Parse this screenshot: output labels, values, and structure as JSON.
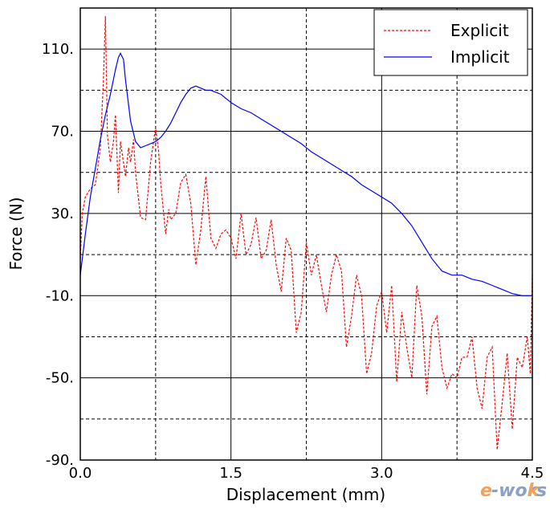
{
  "chart_data": {
    "type": "line",
    "xlabel": "Displacement (mm)",
    "ylabel": "Force (N)",
    "xlim": [
      0,
      4.5
    ],
    "ylim": [
      -90,
      130
    ],
    "x_ticks": [
      0.0,
      1.5,
      3.0,
      4.5
    ],
    "x_tick_labels": [
      "0.0",
      "1.5",
      "3.0",
      "4.5"
    ],
    "y_ticks": [
      -90,
      -50,
      -10,
      30,
      70,
      110
    ],
    "y_tick_labels": [
      "-90.",
      "-50.",
      "-10.",
      "30.",
      "70.",
      "110."
    ],
    "grid": true,
    "legend_position": "top-right",
    "series": [
      {
        "name": "Explicit",
        "color": "#ff0000",
        "style": "dashed",
        "x": [
          0.0,
          0.02,
          0.05,
          0.1,
          0.15,
          0.2,
          0.23,
          0.25,
          0.27,
          0.3,
          0.33,
          0.35,
          0.38,
          0.4,
          0.45,
          0.48,
          0.5,
          0.53,
          0.55,
          0.6,
          0.65,
          0.7,
          0.75,
          0.78,
          0.8,
          0.85,
          0.88,
          0.9,
          0.95,
          1.0,
          1.05,
          1.1,
          1.15,
          1.2,
          1.25,
          1.3,
          1.35,
          1.4,
          1.45,
          1.5,
          1.55,
          1.6,
          1.65,
          1.7,
          1.75,
          1.8,
          1.85,
          1.9,
          1.95,
          2.0,
          2.05,
          2.1,
          2.15,
          2.2,
          2.25,
          2.3,
          2.35,
          2.4,
          2.45,
          2.5,
          2.55,
          2.6,
          2.65,
          2.7,
          2.75,
          2.8,
          2.85,
          2.9,
          2.95,
          3.0,
          3.05,
          3.1,
          3.15,
          3.2,
          3.25,
          3.3,
          3.35,
          3.4,
          3.45,
          3.5,
          3.55,
          3.6,
          3.65,
          3.7,
          3.75,
          3.8,
          3.85,
          3.9,
          3.95,
          4.0,
          4.05,
          4.1,
          4.15,
          4.2,
          4.25,
          4.3,
          4.35,
          4.4,
          4.45,
          4.48,
          4.5
        ],
        "y": [
          8,
          30,
          38,
          42,
          44,
          62,
          95,
          126,
          68,
          55,
          65,
          78,
          40,
          65,
          48,
          62,
          55,
          66,
          50,
          28,
          27,
          55,
          72,
          60,
          45,
          20,
          32,
          27,
          30,
          45,
          49,
          35,
          5,
          22,
          48,
          18,
          13,
          20,
          22,
          18,
          8,
          30,
          10,
          15,
          28,
          8,
          12,
          27,
          5,
          -8,
          18,
          12,
          -28,
          -18,
          16,
          0,
          10,
          -5,
          -18,
          0,
          10,
          2,
          -35,
          -20,
          0,
          -10,
          -48,
          -38,
          -15,
          -8,
          -28,
          -5,
          -52,
          -18,
          -35,
          -50,
          -5,
          -20,
          -58,
          -25,
          -20,
          -45,
          -55,
          -48,
          -50,
          -40,
          -40,
          -30,
          -55,
          -65,
          -40,
          -35,
          -85,
          -62,
          -38,
          -75,
          -40,
          -45,
          -30,
          -48,
          0
        ]
      },
      {
        "name": "Implicit",
        "color": "#0000ff",
        "style": "solid",
        "x": [
          0.0,
          0.05,
          0.1,
          0.15,
          0.2,
          0.25,
          0.3,
          0.35,
          0.38,
          0.4,
          0.43,
          0.45,
          0.5,
          0.55,
          0.6,
          0.65,
          0.7,
          0.75,
          0.8,
          0.85,
          0.9,
          0.95,
          1.0,
          1.05,
          1.1,
          1.15,
          1.2,
          1.25,
          1.3,
          1.4,
          1.5,
          1.6,
          1.7,
          1.8,
          1.9,
          2.0,
          2.1,
          2.2,
          2.3,
          2.4,
          2.5,
          2.6,
          2.7,
          2.8,
          2.9,
          3.0,
          3.1,
          3.2,
          3.3,
          3.4,
          3.5,
          3.6,
          3.7,
          3.8,
          3.9,
          4.0,
          4.1,
          4.2,
          4.3,
          4.4,
          4.5
        ],
        "y": [
          0,
          20,
          38,
          52,
          66,
          78,
          88,
          100,
          106,
          108,
          105,
          95,
          75,
          65,
          62,
          63,
          64,
          65,
          67,
          70,
          74,
          79,
          84,
          88,
          91,
          92,
          91,
          90,
          90,
          88,
          84,
          81,
          79,
          76,
          73,
          70,
          67,
          64,
          60,
          57,
          54,
          51,
          48,
          44,
          41,
          38,
          35,
          30,
          24,
          16,
          8,
          2,
          0,
          0,
          -2,
          -3,
          -5,
          -7,
          -9,
          -10,
          -10
        ]
      }
    ]
  },
  "watermark": "e-works"
}
